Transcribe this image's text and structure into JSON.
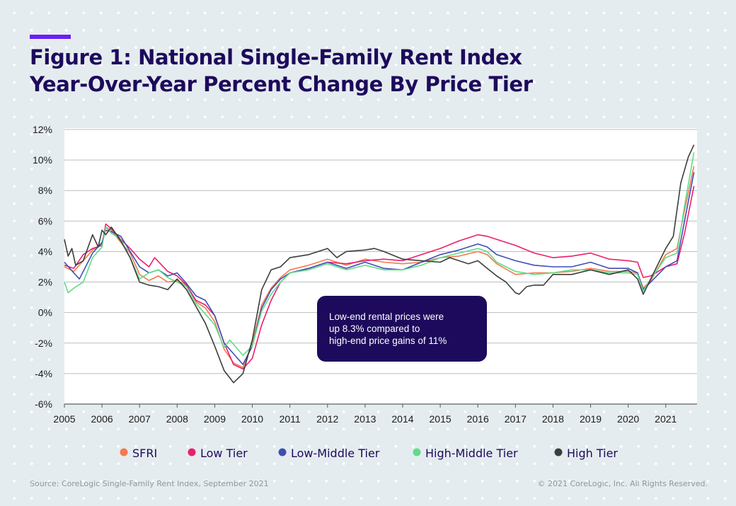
{
  "header": {
    "title_line1": "Figure 1: National Single-Family Rent Index",
    "title_line2": "Year-Over-Year Percent Change By Price Tier"
  },
  "annotation": {
    "line1": "Low-end rental prices were",
    "line2": "up 8.3% compared to",
    "line3": "high-end price gains of 11%"
  },
  "footer": {
    "source": "Source: CoreLogic Single-Family Rent Index, September 2021",
    "copyright": "© 2021 CoreLogic, Inc. All Rights Reserved."
  },
  "colors": {
    "background": "#e5ecef",
    "title": "#1d0a5c",
    "accent": "#6a1ff5",
    "annotation_box": "#1d0a5c"
  },
  "chart_data": {
    "type": "line",
    "ylim": [
      -6,
      12
    ],
    "xlim": [
      2005,
      2021.8333
    ],
    "grid": true,
    "legend_position": "bottom",
    "y_ticks": [
      -6,
      -4,
      -2,
      0,
      2,
      4,
      6,
      8,
      10,
      12
    ],
    "y_tick_labels": [
      "-6%",
      "-4%",
      "-2%",
      "0%",
      "2%",
      "4%",
      "6%",
      "8%",
      "10%",
      "12%"
    ],
    "x_ticks": [
      2005,
      2006,
      2007,
      2008,
      2009,
      2010,
      2011,
      2012,
      2013,
      2014,
      2015,
      2016,
      2017,
      2018,
      2019,
      2020,
      2021
    ],
    "x_tick_labels": [
      "2005",
      "2006",
      "2007",
      "2008",
      "2009",
      "2010",
      "2011",
      "2012",
      "2013",
      "2014",
      "2015",
      "2016",
      "2017",
      "2018",
      "2019",
      "2020",
      "2021"
    ],
    "series": [
      {
        "name": "SFRI",
        "color": "#f47a4e",
        "points": [
          [
            2005,
            3.0
          ],
          [
            2005.25,
            2.7
          ],
          [
            2005.5,
            3.4
          ],
          [
            2005.75,
            4.1
          ],
          [
            2006,
            4.5
          ],
          [
            2006.1,
            5.6
          ],
          [
            2006.25,
            5.4
          ],
          [
            2006.5,
            4.6
          ],
          [
            2006.75,
            3.9
          ],
          [
            2007,
            2.5
          ],
          [
            2007.25,
            2.1
          ],
          [
            2007.5,
            2.4
          ],
          [
            2007.75,
            2.0
          ],
          [
            2008,
            2.1
          ],
          [
            2008.25,
            1.8
          ],
          [
            2008.5,
            0.7
          ],
          [
            2008.75,
            0.3
          ],
          [
            2009,
            -0.6
          ],
          [
            2009.25,
            -2.4
          ],
          [
            2009.5,
            -3.3
          ],
          [
            2009.75,
            -3.6
          ],
          [
            2010,
            -2.0
          ],
          [
            2010.25,
            0.5
          ],
          [
            2010.5,
            1.6
          ],
          [
            2010.75,
            2.3
          ],
          [
            2011,
            2.8
          ],
          [
            2011.5,
            3.1
          ],
          [
            2012,
            3.5
          ],
          [
            2012.5,
            3.1
          ],
          [
            2013,
            3.5
          ],
          [
            2013.5,
            3.3
          ],
          [
            2014,
            3.2
          ],
          [
            2014.5,
            3.3
          ],
          [
            2015,
            3.6
          ],
          [
            2015.5,
            3.7
          ],
          [
            2016,
            4.0
          ],
          [
            2016.25,
            3.8
          ],
          [
            2016.5,
            3.2
          ],
          [
            2017,
            2.5
          ],
          [
            2017.5,
            2.6
          ],
          [
            2018,
            2.6
          ],
          [
            2018.5,
            2.7
          ],
          [
            2019,
            2.9
          ],
          [
            2019.5,
            2.7
          ],
          [
            2020,
            2.7
          ],
          [
            2020.25,
            2.6
          ],
          [
            2020.4,
            1.6
          ],
          [
            2020.6,
            2.1
          ],
          [
            2021,
            3.8
          ],
          [
            2021.3,
            4.2
          ],
          [
            2021.5,
            6.7
          ],
          [
            2021.75,
            9.6
          ]
        ]
      },
      {
        "name": "Low Tier",
        "color": "#ea1f6e",
        "points": [
          [
            2005,
            3.1
          ],
          [
            2005.25,
            2.9
          ],
          [
            2005.5,
            3.8
          ],
          [
            2005.75,
            4.2
          ],
          [
            2006,
            4.4
          ],
          [
            2006.1,
            5.8
          ],
          [
            2006.25,
            5.5
          ],
          [
            2006.5,
            4.8
          ],
          [
            2006.75,
            4.2
          ],
          [
            2007,
            3.5
          ],
          [
            2007.25,
            3.0
          ],
          [
            2007.4,
            3.6
          ],
          [
            2007.75,
            2.7
          ],
          [
            2008,
            2.4
          ],
          [
            2008.25,
            1.8
          ],
          [
            2008.5,
            0.8
          ],
          [
            2008.75,
            0.5
          ],
          [
            2009,
            -0.2
          ],
          [
            2009.25,
            -2.0
          ],
          [
            2009.5,
            -3.4
          ],
          [
            2009.75,
            -3.7
          ],
          [
            2010,
            -3.0
          ],
          [
            2010.25,
            -0.8
          ],
          [
            2010.5,
            0.8
          ],
          [
            2010.75,
            2.0
          ],
          [
            2011,
            2.6
          ],
          [
            2011.5,
            2.9
          ],
          [
            2012,
            3.3
          ],
          [
            2012.5,
            3.2
          ],
          [
            2013,
            3.4
          ],
          [
            2013.5,
            3.5
          ],
          [
            2014,
            3.4
          ],
          [
            2014.5,
            3.8
          ],
          [
            2015,
            4.2
          ],
          [
            2015.5,
            4.7
          ],
          [
            2016,
            5.1
          ],
          [
            2016.25,
            5.0
          ],
          [
            2016.5,
            4.8
          ],
          [
            2017,
            4.4
          ],
          [
            2017.5,
            3.9
          ],
          [
            2018,
            3.6
          ],
          [
            2018.5,
            3.7
          ],
          [
            2019,
            3.9
          ],
          [
            2019.5,
            3.5
          ],
          [
            2020,
            3.4
          ],
          [
            2020.25,
            3.3
          ],
          [
            2020.4,
            2.3
          ],
          [
            2020.6,
            2.4
          ],
          [
            2021,
            3.0
          ],
          [
            2021.3,
            3.2
          ],
          [
            2021.5,
            5.2
          ],
          [
            2021.75,
            8.3
          ]
        ]
      },
      {
        "name": "Low-Middle Tier",
        "color": "#3f4db8",
        "points": [
          [
            2005,
            3.3
          ],
          [
            2005.25,
            2.6
          ],
          [
            2005.4,
            2.2
          ],
          [
            2005.75,
            3.9
          ],
          [
            2006,
            4.6
          ],
          [
            2006.1,
            5.4
          ],
          [
            2006.25,
            5.3
          ],
          [
            2006.5,
            5.0
          ],
          [
            2006.75,
            4.0
          ],
          [
            2007,
            3.0
          ],
          [
            2007.25,
            2.6
          ],
          [
            2007.5,
            2.8
          ],
          [
            2007.75,
            2.4
          ],
          [
            2008,
            2.6
          ],
          [
            2008.25,
            1.9
          ],
          [
            2008.5,
            1.1
          ],
          [
            2008.75,
            0.8
          ],
          [
            2009,
            -0.2
          ],
          [
            2009.25,
            -2.0
          ],
          [
            2009.5,
            -2.7
          ],
          [
            2009.75,
            -3.4
          ],
          [
            2010,
            -2.2
          ],
          [
            2010.25,
            0.3
          ],
          [
            2010.5,
            1.5
          ],
          [
            2010.75,
            2.2
          ],
          [
            2011,
            2.6
          ],
          [
            2011.5,
            2.9
          ],
          [
            2012,
            3.3
          ],
          [
            2012.5,
            2.9
          ],
          [
            2013,
            3.3
          ],
          [
            2013.5,
            2.9
          ],
          [
            2014,
            2.8
          ],
          [
            2014.5,
            3.3
          ],
          [
            2015,
            3.8
          ],
          [
            2015.5,
            4.1
          ],
          [
            2016,
            4.5
          ],
          [
            2016.25,
            4.3
          ],
          [
            2016.5,
            3.8
          ],
          [
            2017,
            3.4
          ],
          [
            2017.5,
            3.1
          ],
          [
            2018,
            3.0
          ],
          [
            2018.5,
            3.0
          ],
          [
            2019,
            3.3
          ],
          [
            2019.5,
            2.9
          ],
          [
            2020,
            2.9
          ],
          [
            2020.25,
            2.6
          ],
          [
            2020.4,
            1.5
          ],
          [
            2020.6,
            2.0
          ],
          [
            2021,
            3.0
          ],
          [
            2021.3,
            3.4
          ],
          [
            2021.5,
            6.0
          ],
          [
            2021.75,
            9.2
          ]
        ]
      },
      {
        "name": "High-Middle Tier",
        "color": "#5fdc87",
        "points": [
          [
            2005,
            2.0
          ],
          [
            2005.1,
            1.3
          ],
          [
            2005.25,
            1.6
          ],
          [
            2005.5,
            2.0
          ],
          [
            2005.75,
            3.6
          ],
          [
            2006,
            4.3
          ],
          [
            2006.1,
            5.6
          ],
          [
            2006.25,
            5.2
          ],
          [
            2006.5,
            4.8
          ],
          [
            2006.75,
            3.6
          ],
          [
            2007,
            2.2
          ],
          [
            2007.25,
            2.6
          ],
          [
            2007.5,
            2.8
          ],
          [
            2007.75,
            2.3
          ],
          [
            2008,
            2.0
          ],
          [
            2008.25,
            1.7
          ],
          [
            2008.5,
            0.6
          ],
          [
            2008.75,
            -0.1
          ],
          [
            2009,
            -0.8
          ],
          [
            2009.25,
            -2.3
          ],
          [
            2009.4,
            -1.8
          ],
          [
            2009.75,
            -2.8
          ],
          [
            2010,
            -2.2
          ],
          [
            2010.25,
            0.1
          ],
          [
            2010.5,
            1.2
          ],
          [
            2010.75,
            2.0
          ],
          [
            2011,
            2.6
          ],
          [
            2011.5,
            2.8
          ],
          [
            2012,
            3.2
          ],
          [
            2012.5,
            2.8
          ],
          [
            2013,
            3.1
          ],
          [
            2013.5,
            2.8
          ],
          [
            2014,
            2.8
          ],
          [
            2014.5,
            3.1
          ],
          [
            2015,
            3.6
          ],
          [
            2015.5,
            3.9
          ],
          [
            2016,
            4.2
          ],
          [
            2016.25,
            4.0
          ],
          [
            2016.5,
            3.3
          ],
          [
            2017,
            2.7
          ],
          [
            2017.5,
            2.5
          ],
          [
            2018,
            2.6
          ],
          [
            2018.5,
            2.8
          ],
          [
            2019,
            2.8
          ],
          [
            2019.5,
            2.6
          ],
          [
            2020,
            2.6
          ],
          [
            2020.25,
            2.5
          ],
          [
            2020.4,
            1.4
          ],
          [
            2020.6,
            2.2
          ],
          [
            2021,
            3.6
          ],
          [
            2021.3,
            3.9
          ],
          [
            2021.5,
            7.0
          ],
          [
            2021.75,
            10.5
          ]
        ]
      },
      {
        "name": "High Tier",
        "color": "#3a3f3c",
        "points": [
          [
            2005,
            4.8
          ],
          [
            2005.1,
            3.7
          ],
          [
            2005.2,
            4.2
          ],
          [
            2005.3,
            3.1
          ],
          [
            2005.5,
            3.4
          ],
          [
            2005.75,
            5.1
          ],
          [
            2005.9,
            4.3
          ],
          [
            2006,
            5.4
          ],
          [
            2006.1,
            5.1
          ],
          [
            2006.25,
            5.6
          ],
          [
            2006.5,
            4.7
          ],
          [
            2006.75,
            3.6
          ],
          [
            2007,
            2.0
          ],
          [
            2007.25,
            1.8
          ],
          [
            2007.5,
            1.7
          ],
          [
            2007.75,
            1.5
          ],
          [
            2008,
            2.2
          ],
          [
            2008.25,
            1.5
          ],
          [
            2008.5,
            0.4
          ],
          [
            2008.75,
            -0.7
          ],
          [
            2009,
            -2.2
          ],
          [
            2009.25,
            -3.8
          ],
          [
            2009.5,
            -4.6
          ],
          [
            2009.75,
            -4.0
          ],
          [
            2010,
            -1.8
          ],
          [
            2010.25,
            1.5
          ],
          [
            2010.5,
            2.8
          ],
          [
            2010.75,
            3.0
          ],
          [
            2011,
            3.6
          ],
          [
            2011.5,
            3.8
          ],
          [
            2012,
            4.2
          ],
          [
            2012.25,
            3.6
          ],
          [
            2012.5,
            4.0
          ],
          [
            2013,
            4.1
          ],
          [
            2013.25,
            4.2
          ],
          [
            2013.5,
            4.0
          ],
          [
            2014,
            3.5
          ],
          [
            2014.5,
            3.4
          ],
          [
            2015,
            3.3
          ],
          [
            2015.25,
            3.6
          ],
          [
            2015.75,
            3.2
          ],
          [
            2016,
            3.4
          ],
          [
            2016.25,
            2.9
          ],
          [
            2016.5,
            2.4
          ],
          [
            2016.75,
            2.0
          ],
          [
            2017,
            1.3
          ],
          [
            2017.1,
            1.2
          ],
          [
            2017.3,
            1.7
          ],
          [
            2017.5,
            1.8
          ],
          [
            2017.75,
            1.8
          ],
          [
            2018,
            2.5
          ],
          [
            2018.5,
            2.5
          ],
          [
            2019,
            2.8
          ],
          [
            2019.5,
            2.5
          ],
          [
            2020,
            2.8
          ],
          [
            2020.25,
            2.2
          ],
          [
            2020.4,
            1.2
          ],
          [
            2020.6,
            2.2
          ],
          [
            2021,
            4.2
          ],
          [
            2021.2,
            5.0
          ],
          [
            2021.4,
            8.5
          ],
          [
            2021.6,
            10.2
          ],
          [
            2021.75,
            11.0
          ]
        ]
      }
    ]
  }
}
